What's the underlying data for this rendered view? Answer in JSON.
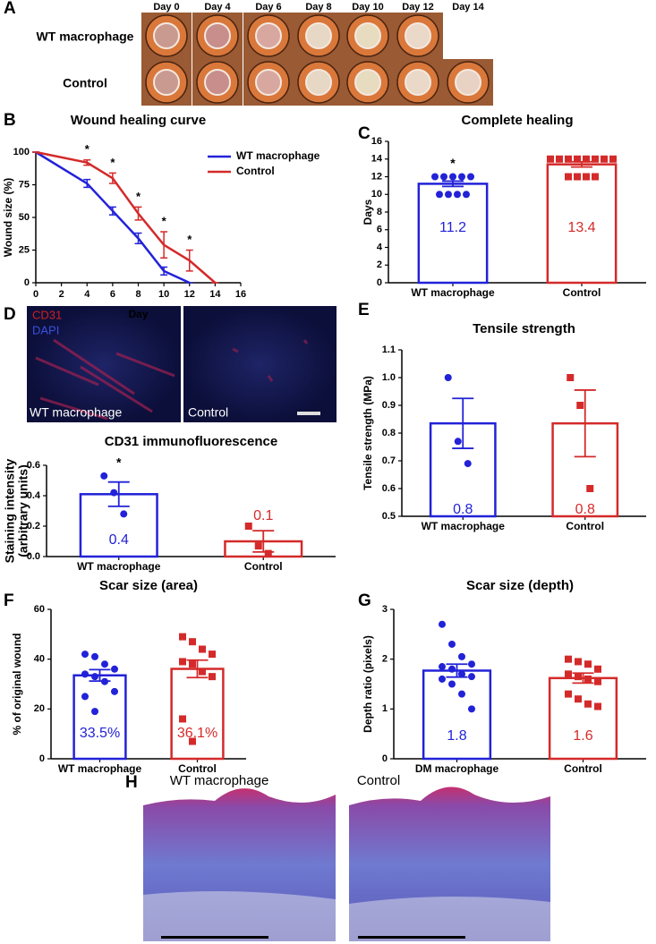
{
  "panel_a": {
    "letter": "A",
    "days": [
      "Day 0",
      "Day 4",
      "Day 6",
      "Day 8",
      "Day 10",
      "Day 12",
      "Day 14"
    ],
    "rows": [
      "WT macrophage",
      "Control"
    ]
  },
  "panel_d_images": {
    "letter": "D",
    "stains": [
      "CD31",
      "DAPI"
    ],
    "labels": [
      "WT macrophage",
      "Control"
    ]
  },
  "panel_h": {
    "letter": "H",
    "labels": [
      "WT macrophage",
      "Control"
    ]
  },
  "chart_data": [
    {
      "panel": "B",
      "type": "line",
      "title": "Wound healing curve",
      "xlabel": "Day",
      "ylabel": "Wound size (%)",
      "xlim": [
        0,
        16
      ],
      "xticks": [
        0,
        2,
        4,
        6,
        8,
        10,
        12,
        14,
        16
      ],
      "ylim": [
        0,
        100
      ],
      "yticks": [
        0,
        25,
        50,
        75,
        100
      ],
      "legend": "upper right",
      "series": [
        {
          "name": "WT macrophage",
          "color": "#2222d8",
          "x": [
            0,
            4,
            6,
            8,
            10,
            12
          ],
          "values": [
            100,
            76,
            55,
            34,
            9,
            0
          ],
          "errors": [
            0,
            3,
            3,
            4,
            3,
            0
          ]
        },
        {
          "name": "Control",
          "color": "#d42a2a",
          "x": [
            0,
            4,
            6,
            8,
            10,
            12,
            14
          ],
          "values": [
            100,
            92,
            80,
            53,
            29,
            17,
            0
          ],
          "errors": [
            0,
            2,
            4,
            5,
            10,
            8,
            0
          ]
        }
      ],
      "significance_label": "*",
      "significance_x": [
        4,
        6,
        8,
        10,
        12
      ]
    },
    {
      "panel": "C",
      "type": "bar",
      "title": "Complete healing",
      "ylabel": "Days",
      "categories": [
        "WT macrophage",
        "Control"
      ],
      "colors": [
        "#2222d8",
        "#d42a2a"
      ],
      "markers": [
        "circle",
        "square"
      ],
      "values": [
        11.2,
        13.4
      ],
      "errors": [
        0.3,
        0.3
      ],
      "points": [
        [
          12,
          12,
          12,
          12,
          12,
          10,
          10,
          10,
          10
        ],
        [
          14,
          14,
          14,
          14,
          14,
          14,
          14,
          14,
          12,
          12,
          12,
          12
        ]
      ],
      "ylim": [
        0,
        16
      ],
      "yticks": [
        0,
        2,
        4,
        6,
        8,
        10,
        12,
        14,
        16
      ],
      "significance_label": "*",
      "significant": [
        0
      ]
    },
    {
      "type": "bar",
      "title": "CD31 immunofluorescence",
      "ylabel": [
        "Staining intensity",
        "(arbitrary units)"
      ],
      "categories": [
        "WT macrophage",
        "Control"
      ],
      "colors": [
        "#2222d8",
        "#d42a2a"
      ],
      "markers": [
        "circle",
        "square"
      ],
      "values": [
        0.41,
        0.1
      ],
      "value_labels": [
        "0.4",
        "0.1"
      ],
      "errors": [
        0.08,
        0.07
      ],
      "points": [
        [
          0.53,
          0.42,
          0.28
        ],
        [
          0.2,
          0.07,
          0.02
        ]
      ],
      "ylim": [
        0,
        0.6
      ],
      "yticks": [
        {
          "value": 0,
          "label": "0.0"
        },
        0.2,
        0.4,
        0.6
      ],
      "significance_label": "*",
      "significant": [
        0
      ]
    },
    {
      "panel": "E",
      "type": "bar",
      "title": "Tensile strength",
      "ylabel": "Tensile strength (MPa)",
      "categories": [
        "WT macrophage",
        "Control"
      ],
      "colors": [
        "#2222d8",
        "#d42a2a"
      ],
      "markers": [
        "circle",
        "square"
      ],
      "values": [
        0.835,
        0.835
      ],
      "value_labels": [
        "0.8",
        "0.8"
      ],
      "errors": [
        0.09,
        0.12
      ],
      "points": [
        [
          1.0,
          0.77,
          0.69
        ],
        [
          1.0,
          0.9,
          0.6
        ]
      ],
      "ylim": [
        0.5,
        1.1
      ],
      "yticks": [
        0.5,
        0.6,
        0.7,
        0.8,
        0.9,
        {
          "value": 1,
          "label": "1.0"
        },
        1.1
      ]
    },
    {
      "panel": "F",
      "type": "bar",
      "title": "Scar size (area)",
      "ylabel": "% of original wound",
      "categories": [
        "WT macrophage",
        "Control"
      ],
      "colors": [
        "#2222d8",
        "#d42a2a"
      ],
      "markers": [
        "circle",
        "square"
      ],
      "values": [
        33.5,
        36.1
      ],
      "value_labels": [
        "33.5%",
        "36.1%"
      ],
      "errors": [
        2.3,
        3.5
      ],
      "points": [
        [
          42,
          41,
          38,
          36,
          34,
          33,
          31,
          27,
          25,
          19
        ],
        [
          49,
          47,
          44,
          42,
          39,
          38,
          35,
          33,
          16,
          7
        ]
      ],
      "ylim": [
        0,
        60
      ],
      "yticks": [
        0,
        20,
        40,
        60
      ]
    },
    {
      "panel": "G",
      "type": "bar",
      "title": "Scar size (depth)",
      "ylabel": "Depth ratio (pixels)",
      "categories": [
        "DM macrophage",
        "Control"
      ],
      "colors": [
        "#2222d8",
        "#d42a2a"
      ],
      "markers": [
        "circle",
        "square"
      ],
      "values": [
        1.77,
        1.62
      ],
      "value_labels": [
        "1.8",
        "1.6"
      ],
      "errors": [
        0.13,
        0.1
      ],
      "points": [
        [
          2.7,
          2.3,
          2.05,
          1.9,
          1.85,
          1.8,
          1.7,
          1.65,
          1.6,
          1.5,
          1.3,
          1.0
        ],
        [
          2.0,
          1.95,
          1.9,
          1.8,
          1.7,
          1.65,
          1.6,
          1.55,
          1.3,
          1.2,
          1.1,
          1.05
        ]
      ],
      "ylim": [
        0,
        3
      ],
      "yticks": [
        0,
        1,
        2,
        3
      ]
    }
  ]
}
